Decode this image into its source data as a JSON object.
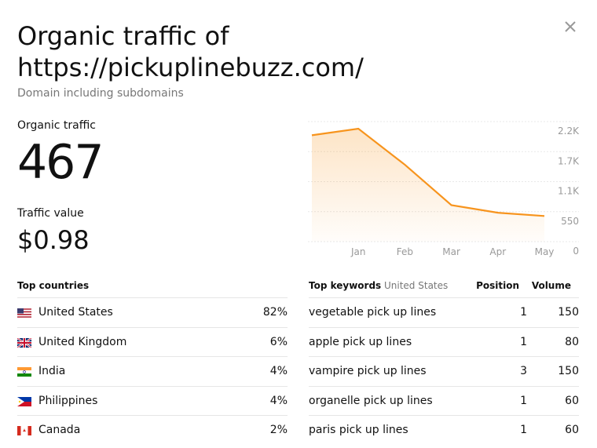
{
  "header": {
    "title": "Organic traffic of https://pickuplinebuzz.com/",
    "subtitle": "Domain including subdomains"
  },
  "metrics": {
    "organic_traffic": {
      "label": "Organic traffic",
      "value": "467"
    },
    "traffic_value": {
      "label": "Traffic value",
      "value": "$0.98"
    }
  },
  "chart_data": {
    "type": "area",
    "categories": [
      null,
      "Jan",
      "Feb",
      "Mar",
      "Apr",
      "May"
    ],
    "values": [
      1950,
      2070,
      1410,
      670,
      530,
      470
    ],
    "color": "#f7941d",
    "ylim": [
      0,
      2200
    ],
    "yticks": [
      0,
      550,
      {
        "value": 1100,
        "label": "1.1K"
      },
      {
        "value": 1650,
        "label": "1.7K"
      },
      {
        "value": 2200,
        "label": "2.2K"
      }
    ],
    "grid": true
  },
  "countries": {
    "heading": "Top countries",
    "rows": [
      {
        "name": "United States",
        "share": "82%"
      },
      {
        "name": "United Kingdom",
        "share": "6%"
      },
      {
        "name": "India",
        "share": "4%"
      },
      {
        "name": "Philippines",
        "share": "4%"
      },
      {
        "name": "Canada",
        "share": "2%"
      }
    ]
  },
  "keywords": {
    "heading": "Top keywords",
    "filter": "United States",
    "columns": [
      "Position",
      "Volume"
    ],
    "rows": [
      {
        "keyword": "vegetable pick up lines",
        "position": "1",
        "volume": "150"
      },
      {
        "keyword": "apple pick up lines",
        "position": "1",
        "volume": "80"
      },
      {
        "keyword": "vampire pick up lines",
        "position": "3",
        "volume": "150"
      },
      {
        "keyword": "organelle pick up lines",
        "position": "1",
        "volume": "60"
      },
      {
        "keyword": "paris pick up lines",
        "position": "1",
        "volume": "60"
      }
    ]
  }
}
